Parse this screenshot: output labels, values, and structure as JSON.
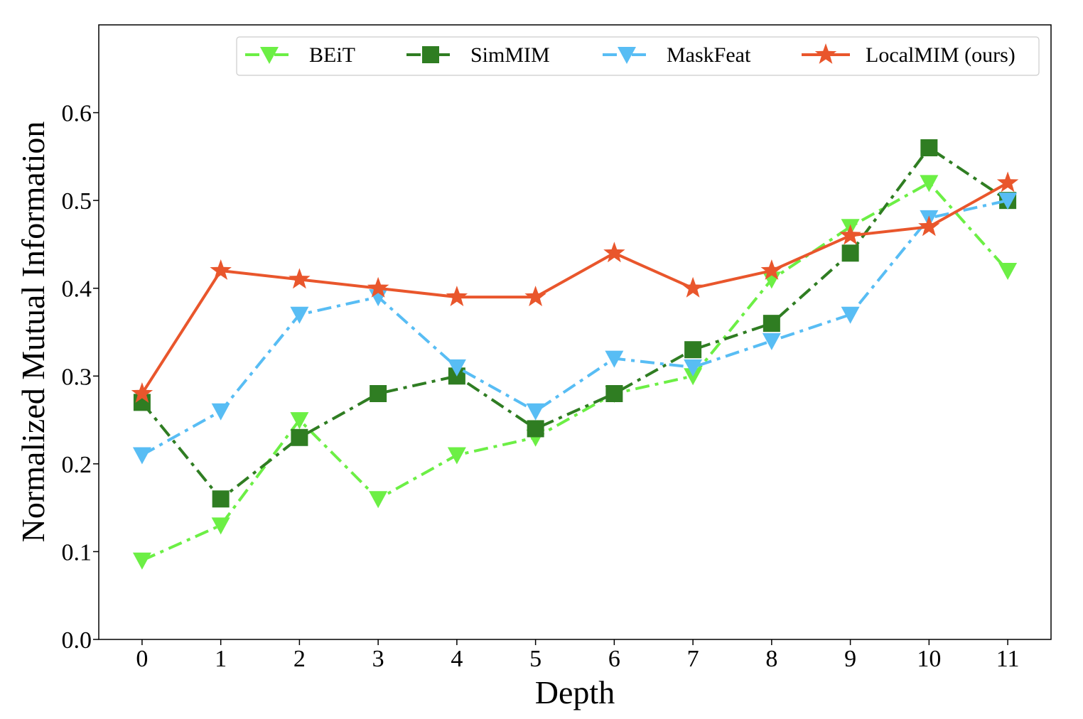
{
  "chart_data": {
    "type": "line",
    "title": "",
    "xlabel": "Depth",
    "ylabel": "Normalized Mutual Information",
    "x": [
      0,
      1,
      2,
      3,
      4,
      5,
      6,
      7,
      8,
      9,
      10,
      11
    ],
    "xticks": [
      "0",
      "1",
      "2",
      "3",
      "4",
      "5",
      "6",
      "7",
      "8",
      "9",
      "10",
      "11"
    ],
    "yticks": [
      "0.0",
      "0.1",
      "0.2",
      "0.3",
      "0.4",
      "0.5",
      "0.6"
    ],
    "xlim": [
      -0.55,
      11.55
    ],
    "ylim": [
      0,
      0.7
    ],
    "grid": false,
    "legend_position": "top-right",
    "series": [
      {
        "name": "BEiT",
        "color": "#6cef45",
        "marker": "triangle-down",
        "linestyle": "dash-dot",
        "values": [
          0.09,
          0.13,
          0.25,
          0.16,
          0.21,
          0.23,
          0.28,
          0.3,
          0.41,
          0.47,
          0.52,
          0.42
        ]
      },
      {
        "name": "SimMIM",
        "color": "#2f7d22",
        "marker": "square",
        "linestyle": "dash-dot",
        "values": [
          0.27,
          0.16,
          0.23,
          0.28,
          0.3,
          0.24,
          0.28,
          0.33,
          0.36,
          0.44,
          0.56,
          0.5
        ]
      },
      {
        "name": "MaskFeat",
        "color": "#58bdf4",
        "marker": "triangle-down",
        "linestyle": "dash-dot",
        "values": [
          0.21,
          0.26,
          0.37,
          0.39,
          0.31,
          0.26,
          0.32,
          0.31,
          0.34,
          0.37,
          0.48,
          0.5
        ]
      },
      {
        "name": "LocalMIM (ours)",
        "color": "#e9562c",
        "marker": "star",
        "linestyle": "solid",
        "values": [
          0.28,
          0.42,
          0.41,
          0.4,
          0.39,
          0.39,
          0.44,
          0.4,
          0.42,
          0.46,
          0.47,
          0.52
        ]
      }
    ]
  }
}
